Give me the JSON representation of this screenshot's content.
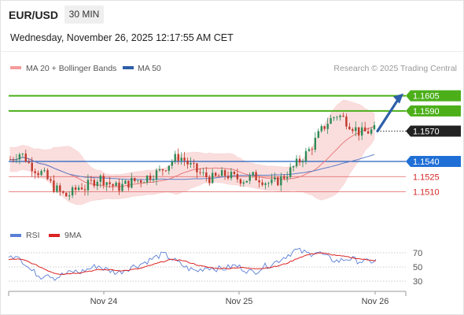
{
  "header": {
    "pair": "EUR/USD",
    "timeframe": "30 MIN",
    "datetime": "Wednesday, November 26, 2025 12:17:55 AM CET"
  },
  "legend": {
    "ma20": "MA 20 + Bollinger Bands",
    "ma50": "MA 50",
    "research": "Research © 2025 Trading Central"
  },
  "rsi_legend": {
    "rsi": "RSI",
    "ma9": "9MA"
  },
  "colors": {
    "up_candle": "#2e8b57",
    "down_candle": "#c0392b",
    "bollinger_fill": "#f9d3d3",
    "ma20": "#e87a7a",
    "ma50": "#5b7fc7",
    "resistance": "#4caf1a",
    "pivot": "#1f5fbf",
    "support": "#e06060",
    "arrow": "#2d5fa8",
    "rsi_line": "#5b7fd6",
    "rsi_ma": "#dd2222"
  },
  "chart_data": {
    "type": "candlestick",
    "x_axis": {
      "ticks": [
        "Nov 24",
        "Nov 25",
        "Nov 26"
      ]
    },
    "y_axis": {
      "range": [
        1.148,
        1.1625
      ]
    },
    "levels": [
      {
        "label": "1.1605",
        "value": 1.1605,
        "kind": "resistance"
      },
      {
        "label": "1.1590",
        "value": 1.159,
        "kind": "resistance"
      },
      {
        "label": "1.1570",
        "value": 1.157,
        "kind": "current"
      },
      {
        "label": "1.1540",
        "value": 1.154,
        "kind": "pivot"
      },
      {
        "label": "1.1525",
        "value": 1.1525,
        "kind": "support"
      },
      {
        "label": "1.1510",
        "value": 1.151,
        "kind": "support"
      }
    ],
    "forecast": {
      "from": 1.157,
      "to": 1.1605
    },
    "close_path": [
      1.1542,
      1.1546,
      1.1548,
      1.1545,
      1.1538,
      1.1534,
      1.153,
      1.1528,
      1.1522,
      1.1516,
      1.1512,
      1.1508,
      1.1506,
      1.1508,
      1.1512,
      1.1516,
      1.1514,
      1.1518,
      1.1521,
      1.1524,
      1.1522,
      1.1519,
      1.1516,
      1.1514,
      1.1516,
      1.1518,
      1.152,
      1.1521,
      1.1522,
      1.1524,
      1.1526,
      1.1528,
      1.153,
      1.1534,
      1.1538,
      1.1542,
      1.1545,
      1.1543,
      1.1538,
      1.1534,
      1.153,
      1.1527,
      1.1525,
      1.1523,
      1.1524,
      1.1526,
      1.1527,
      1.1526,
      1.1524,
      1.1523,
      1.1522,
      1.1523,
      1.1525,
      1.1524,
      1.1522,
      1.1519,
      1.1518,
      1.152,
      1.1523,
      1.1527,
      1.1531,
      1.1536,
      1.1541,
      1.1546,
      1.1551,
      1.1558,
      1.1566,
      1.1573,
      1.1579,
      1.1583,
      1.1586,
      1.1584,
      1.158,
      1.1576,
      1.1572,
      1.1568,
      1.1569,
      1.157,
      1.1571
    ],
    "rsi": {
      "levels": [
        70,
        50,
        30
      ],
      "range": [
        20,
        80
      ],
      "rsi_path": [
        62,
        66,
        68,
        58,
        50,
        44,
        40,
        36,
        42,
        38,
        34,
        38,
        40,
        42,
        44,
        42,
        45,
        47,
        50,
        52,
        48,
        46,
        44,
        42,
        44,
        47,
        50,
        52,
        54,
        57,
        60,
        63,
        66,
        68,
        64,
        60,
        56,
        52,
        48,
        46,
        44,
        47,
        50,
        49,
        48,
        47,
        48,
        50,
        52,
        50,
        47,
        44,
        42,
        46,
        50,
        52,
        55,
        58,
        62,
        66,
        70,
        74,
        72,
        70,
        68,
        72,
        70,
        66,
        62,
        60,
        58,
        60,
        62,
        61,
        59,
        58,
        57,
        58,
        59
      ],
      "ma9_path": [
        60,
        61,
        61,
        60,
        58,
        55,
        52,
        49,
        46,
        43,
        41,
        40,
        40,
        41,
        41,
        42,
        43,
        44,
        45,
        46,
        46,
        46,
        46,
        45,
        45,
        45,
        46,
        47,
        48,
        50,
        52,
        54,
        56,
        58,
        60,
        60,
        60,
        59,
        57,
        55,
        53,
        51,
        50,
        49,
        48,
        48,
        48,
        48,
        49,
        49,
        49,
        48,
        48,
        48,
        48,
        49,
        50,
        51,
        53,
        55,
        58,
        61,
        64,
        66,
        68,
        69,
        70,
        69,
        68,
        67,
        66,
        65,
        64,
        63,
        62,
        61,
        60,
        60,
        59
      ]
    }
  }
}
